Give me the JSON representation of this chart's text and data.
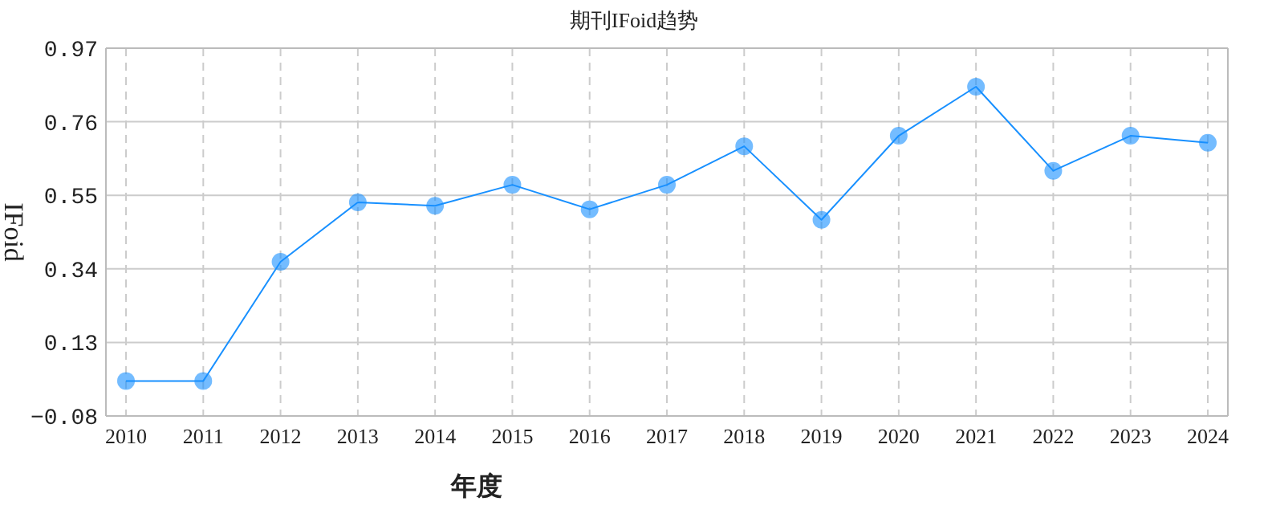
{
  "chart_data": {
    "type": "line",
    "title": "期刊IFoid趋势",
    "xlabel": "年度",
    "ylabel": "IFoid",
    "categories": [
      "2010",
      "2011",
      "2012",
      "2013",
      "2014",
      "2015",
      "2016",
      "2017",
      "2018",
      "2019",
      "2020",
      "2021",
      "2022",
      "2023",
      "2024"
    ],
    "series": [
      {
        "color": "#1890ff",
        "values": [
          0.02,
          0.02,
          0.36,
          0.53,
          0.52,
          0.58,
          0.51,
          0.58,
          0.69,
          0.48,
          0.72,
          0.86,
          0.62,
          0.72,
          0.7
        ]
      }
    ],
    "ylim": [
      -0.08,
      0.97
    ],
    "yticks": [
      -0.08,
      0.13,
      0.34,
      0.55,
      0.76,
      0.97
    ],
    "grid": true,
    "marker": "circle",
    "line_style": "solid"
  }
}
